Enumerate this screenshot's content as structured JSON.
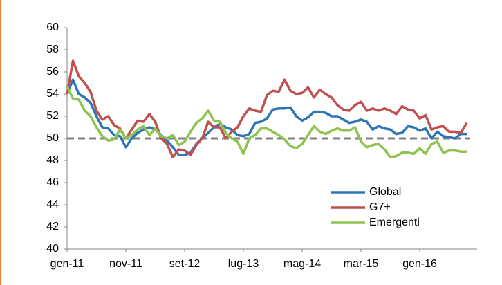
{
  "chart_data": {
    "type": "line",
    "categories": [
      "gen-11",
      null,
      null,
      null,
      null,
      null,
      null,
      null,
      null,
      null,
      "nov-11",
      null,
      null,
      null,
      null,
      null,
      null,
      null,
      null,
      null,
      "set-12",
      null,
      null,
      null,
      null,
      null,
      null,
      null,
      null,
      null,
      "lug-13",
      null,
      null,
      null,
      null,
      null,
      null,
      null,
      null,
      null,
      "mag-14",
      null,
      null,
      null,
      null,
      null,
      null,
      null,
      null,
      null,
      "mar-15",
      null,
      null,
      null,
      null,
      null,
      null,
      null,
      null,
      null,
      "gen-16",
      null,
      null,
      null,
      null,
      null,
      null,
      null,
      null
    ],
    "series": [
      {
        "name": "Global",
        "color": "#2e75b6",
        "values": [
          54.0,
          55.3,
          54.0,
          53.7,
          53.2,
          52.0,
          51.0,
          50.9,
          50.3,
          50.2,
          49.2,
          50.0,
          50.5,
          50.8,
          51.0,
          50.8,
          50.3,
          49.8,
          49.2,
          48.5,
          48.5,
          48.7,
          49.5,
          50.0,
          50.5,
          51.0,
          51.3,
          51.0,
          50.8,
          50.3,
          50.2,
          50.4,
          51.4,
          51.5,
          51.8,
          52.6,
          52.7,
          52.7,
          52.8,
          52.0,
          51.6,
          51.9,
          52.4,
          52.4,
          52.3,
          52.0,
          52.0,
          51.7,
          51.4,
          51.5,
          51.7,
          51.5,
          50.8,
          51.1,
          50.9,
          50.8,
          50.4,
          50.5,
          51.1,
          51.0,
          50.7,
          50.9,
          50.0,
          50.6,
          50.2,
          50.1,
          50.0,
          50.4,
          50.4
        ]
      },
      {
        "name": "G7+",
        "color": "#c0504d",
        "values": [
          54.0,
          57.0,
          55.6,
          55.0,
          54.2,
          52.5,
          51.7,
          52.0,
          51.2,
          50.9,
          50.0,
          50.8,
          51.6,
          51.5,
          52.2,
          51.5,
          50.0,
          49.5,
          48.3,
          49.0,
          48.9,
          48.5,
          49.4,
          50.0,
          51.5,
          51.0,
          51.0,
          50.0,
          50.6,
          51.0,
          52.0,
          52.7,
          52.5,
          52.4,
          53.9,
          54.3,
          54.2,
          55.3,
          54.3,
          54.0,
          54.1,
          54.6,
          53.7,
          54.4,
          54.0,
          53.7,
          53.0,
          52.6,
          52.5,
          53.0,
          53.3,
          52.5,
          52.7,
          52.5,
          52.7,
          52.5,
          52.2,
          52.9,
          52.6,
          52.5,
          51.8,
          52.1,
          50.8,
          51.0,
          51.1,
          50.6,
          50.6,
          50.5,
          51.4
        ]
      },
      {
        "name": "Emergenti",
        "color": "#8fc34f",
        "values": [
          54.7,
          53.6,
          53.5,
          52.5,
          52.0,
          51.0,
          50.2,
          49.8,
          49.9,
          50.8,
          50.0,
          50.3,
          50.8,
          51.1,
          50.3,
          50.9,
          50.2,
          50.0,
          50.3,
          49.4,
          49.7,
          50.6,
          51.4,
          51.8,
          52.5,
          51.6,
          51.5,
          50.5,
          50.0,
          49.7,
          48.6,
          50.0,
          50.3,
          50.9,
          50.9,
          50.6,
          50.3,
          49.9,
          49.3,
          49.1,
          49.5,
          50.3,
          51.1,
          50.6,
          50.4,
          50.7,
          50.9,
          50.7,
          50.7,
          51.0,
          49.7,
          49.2,
          49.4,
          49.5,
          49.0,
          48.3,
          48.4,
          48.7,
          48.7,
          48.6,
          49.1,
          48.6,
          49.5,
          49.7,
          48.7,
          48.9,
          48.9,
          48.8,
          48.8
        ]
      }
    ],
    "ylim": [
      40,
      60
    ],
    "yticks": [
      40,
      42,
      44,
      46,
      48,
      50,
      52,
      54,
      56,
      58,
      60
    ],
    "reference_line": 50,
    "reference_color": "#808080",
    "legend": "lower-right"
  }
}
